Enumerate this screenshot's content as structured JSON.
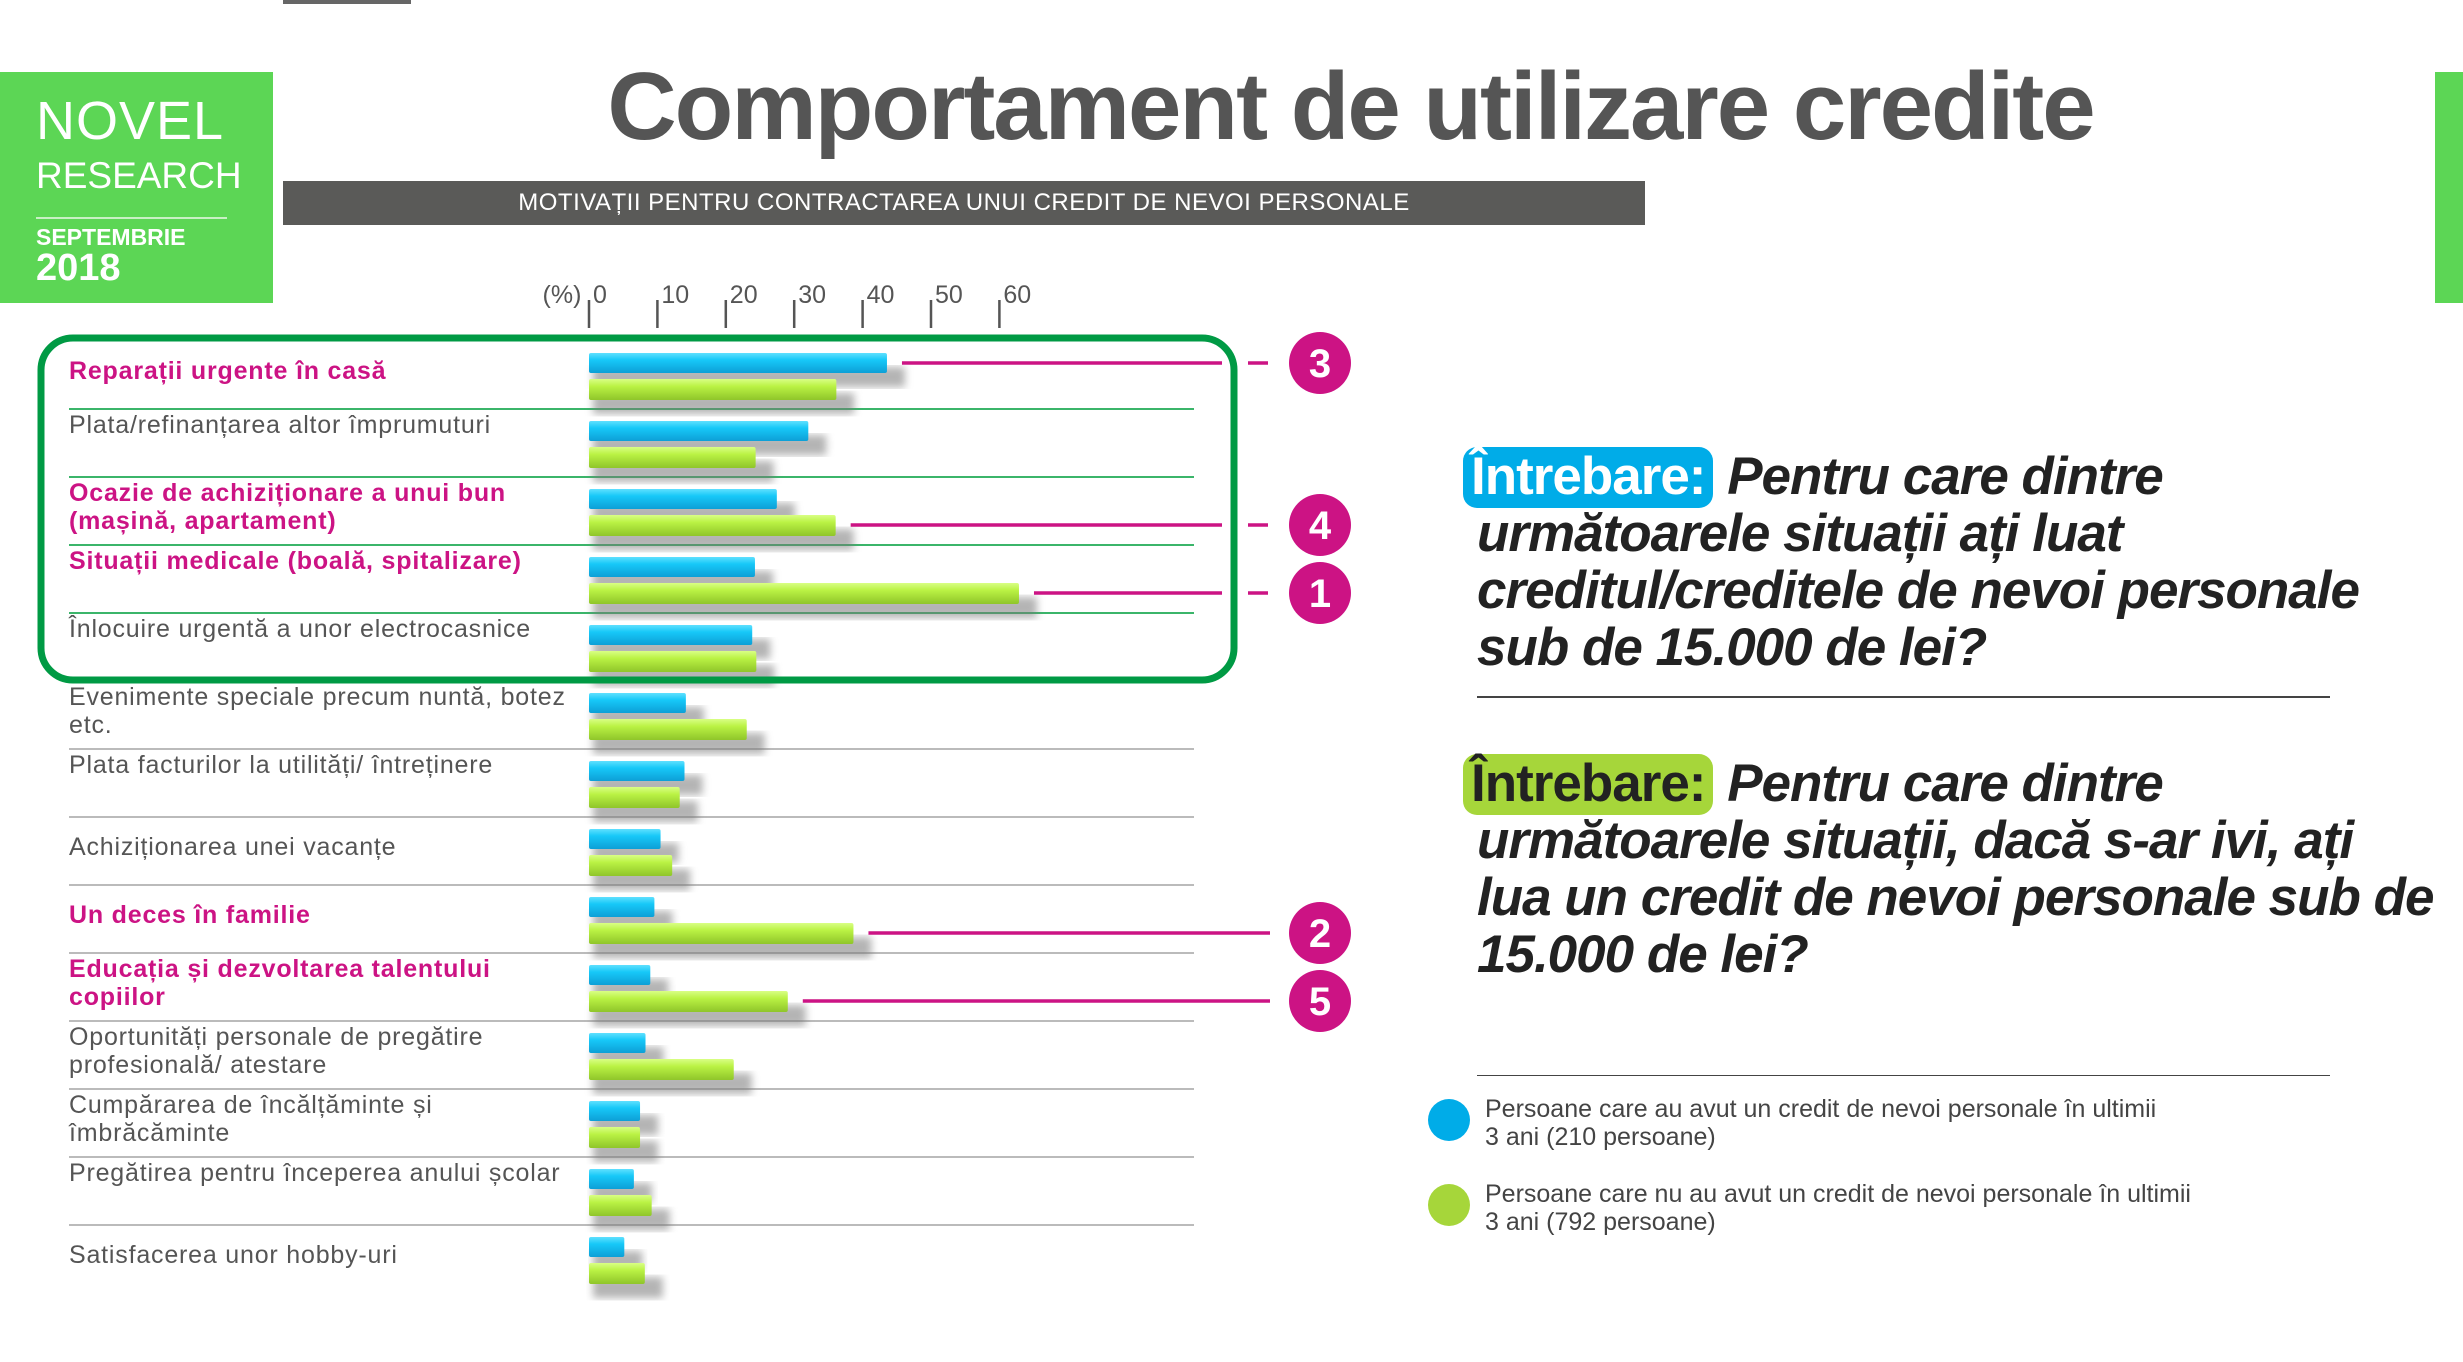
{
  "logo": {
    "line1": "NOVEL",
    "line2": "RESEARCH",
    "line3": "SEPTEMBRIE",
    "line4": "2018",
    "color": "#5cd655"
  },
  "header": {
    "title": "Comportament de utilizare credite",
    "subtitle": "MOTIVAȚII PENTRU CONTRACTAREA UNUI CREDIT DE NEVOI PERSONALE"
  },
  "questions": [
    {
      "tag": "Întrebare:",
      "text": "Pentru care dintre următoarele situații ați luat creditul/creditele de nevoi personale sub de 15.000 de lei?",
      "color": "#00ace8"
    },
    {
      "tag": "Întrebare:",
      "text": "Pentru care dintre următoarele situații, dacă s-ar ivi, ați lua un credit de nevoi personale sub de 15.000 de lei?",
      "color": "#a6d63a"
    }
  ],
  "legend": [
    {
      "text": "Persoane care au avut un credit de nevoi personale în ultimii 3 ani (210 persoane)",
      "color": "#00ace8"
    },
    {
      "text": "Persoane care nu au avut un credit de nevoi personale în ultimii 3 ani (792 persoane)",
      "color": "#a6d63a"
    }
  ],
  "chart_data": {
    "type": "bar",
    "orientation": "horizontal",
    "unit_label": "(%)",
    "xlim": [
      0,
      60
    ],
    "xticks": [
      "0",
      "10",
      "20",
      "30",
      "40",
      "50",
      "60"
    ],
    "categories": [
      "Reparații urgente în casă",
      "Plata/refinanțarea altor împrumuturi",
      "Ocazie de achiziționare a unui bun (mașină, apartament)",
      "Situații medicale (boală, spitalizare)",
      "Înlocuire urgentă a unor electrocasnice",
      "Evenimente speciale precum nuntă, botez etc.",
      "Plata facturilor la utilități/ întreținere",
      "Achiziționarea unei vacanțe",
      "Un deces în familie",
      "Educația și dezvoltarea talentului copiilor",
      "Oportunități personale de pregătire profesională/ atestare",
      "Cumpărarea de încălțăminte și îmbrăcăminte",
      "Pregătirea pentru începerea anului școlar",
      "Satisfacerea unor hobby-uri"
    ],
    "highlighted": [
      true,
      false,
      true,
      true,
      false,
      false,
      false,
      false,
      true,
      true,
      false,
      false,
      false,
      false
    ],
    "boxed_top_n": 5,
    "series": [
      {
        "name": "Persoane care au avut un credit de nevoi personale în ultimii 3 ani (210 persoane)",
        "color": "#17c5f5",
        "values": [
          42.1,
          30.6,
          26.0,
          22.8,
          22.4,
          12.7,
          12.5,
          9.0,
          8.1,
          7.5,
          6.8,
          6.0,
          5.1,
          3.7
        ]
      },
      {
        "name": "Persoane care nu au avut un credit de nevoi personale în ultimii 3 ani (792 persoane)",
        "color": "#b6f040",
        "values": [
          34.7,
          22.9,
          34.6,
          61.4,
          23.0,
          21.6,
          11.8,
          10.7,
          37.2,
          27.6,
          19.7,
          6.0,
          7.7,
          6.7
        ]
      }
    ],
    "rank_markers": [
      {
        "rank": "3",
        "category": 0,
        "series": 0
      },
      {
        "rank": "4",
        "category": 2,
        "series": 1
      },
      {
        "rank": "1",
        "category": 3,
        "series": 1
      },
      {
        "rank": "2",
        "category": 8,
        "series": 1
      },
      {
        "rank": "5",
        "category": 9,
        "series": 1
      }
    ],
    "highlight_color": "#cc1384",
    "box_color": "#009a44"
  }
}
